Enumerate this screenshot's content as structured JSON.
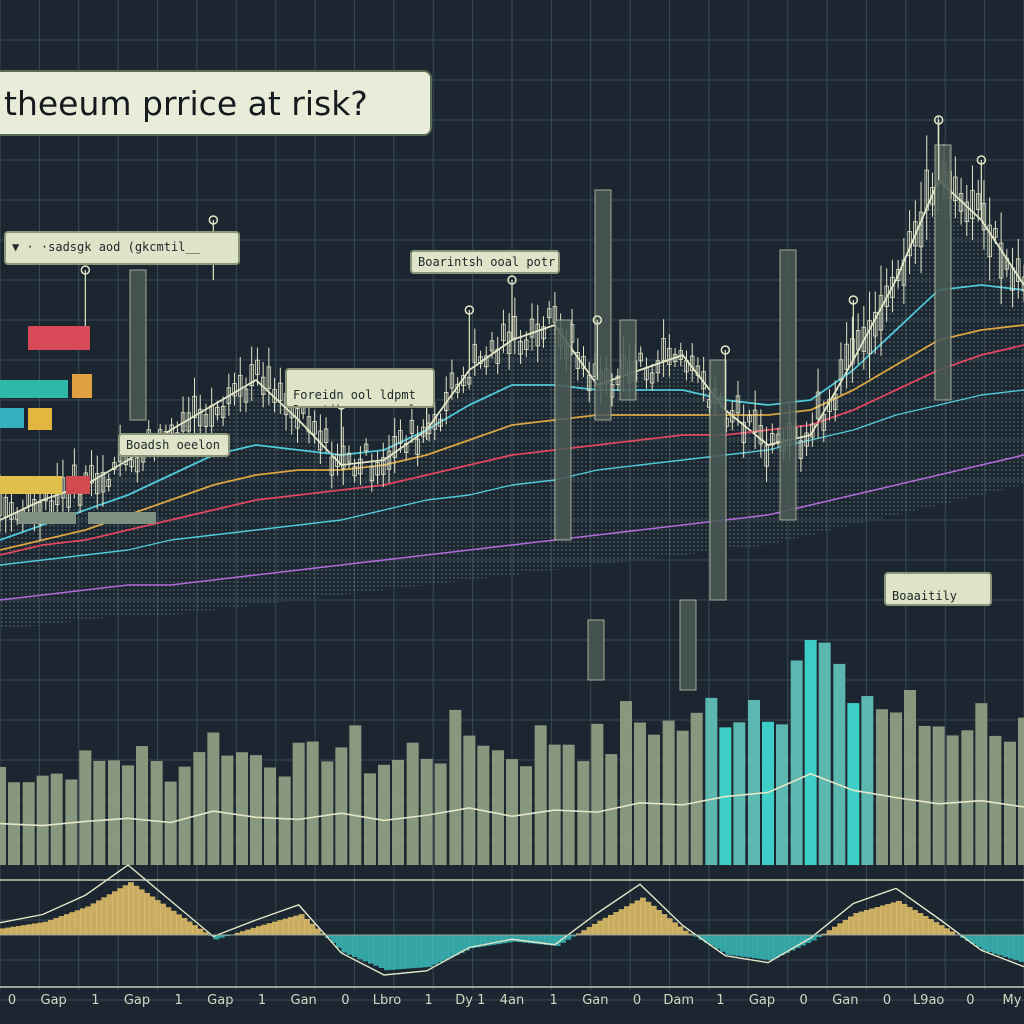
{
  "title": "theeum prrice at risk?",
  "annotations": [
    {
      "id": "legend-note",
      "text": "▼ · ·sadsgk aod (gkcmtil__"
    },
    {
      "id": "bearish-top",
      "text": "Boarintsh ooal potr"
    },
    {
      "id": "mid-note",
      "text": "Foreidn ool ldpmt\nDseotih cnnmanoal"
    },
    {
      "id": "bearish-left",
      "text": "Boadsh oeelon"
    },
    {
      "id": "bullish-right",
      "text": "Boaaitily toe\nUrroi puiseo"
    }
  ],
  "colors": {
    "background": "#1b2630",
    "grid": "#3a4a52",
    "price": "#e4e6c8",
    "cyan": "#4fc8d8",
    "gold": "#d9a441",
    "red": "#e0455f",
    "purple": "#b06ad8",
    "volume": "#8e9e83",
    "volume_highlight": "#3fd8d0",
    "oscillator_gold": "#e6c46a",
    "oscillator_cyan": "#3ab8b8"
  },
  "chart_data": {
    "type": "line",
    "x_tick_labels": [
      "0",
      "Gap",
      "1",
      "Gap",
      "1",
      "Gap",
      "1",
      "Gan",
      "0",
      "Lbro",
      "1",
      "Dy 1",
      "4an",
      "1",
      "Gan",
      "0",
      "Dam",
      "1",
      "Gap",
      "0",
      "Gan",
      "0",
      "L9ao",
      "0",
      "My"
    ],
    "series": [
      {
        "values": [
          40,
          44,
          47,
          52,
          58,
          63,
          68,
          60,
          51,
          52,
          58,
          70,
          76,
          79,
          67,
          70,
          73,
          62,
          55,
          57,
          72,
          88,
          108,
          100,
          87
        ]
      },
      {
        "values": [
          36,
          39,
          42,
          45,
          49,
          53,
          55,
          54,
          53,
          54,
          58,
          63,
          67,
          67,
          66,
          66,
          66,
          64,
          63,
          64,
          70,
          78,
          86,
          87,
          86
        ]
      },
      {
        "values": [
          34,
          36,
          38,
          41,
          44,
          47,
          49,
          50,
          50,
          51,
          53,
          56,
          59,
          60,
          61,
          61,
          61,
          61,
          61,
          62,
          66,
          71,
          76,
          78,
          79
        ]
      },
      {
        "values": [
          33,
          35,
          36,
          38,
          40,
          42,
          44,
          45,
          46,
          47,
          49,
          51,
          53,
          54,
          55,
          56,
          57,
          57,
          58,
          59,
          62,
          66,
          70,
          73,
          75
        ]
      },
      {
        "values": [
          31,
          32,
          33,
          34,
          36,
          37,
          38,
          39,
          40,
          42,
          44,
          45,
          47,
          48,
          50,
          51,
          52,
          53,
          54,
          56,
          58,
          61,
          63,
          65,
          66
        ]
      },
      {
        "values": [
          24,
          25,
          26,
          27,
          27,
          28,
          29,
          30,
          31,
          32,
          33,
          34,
          35,
          36,
          37,
          38,
          39,
          40,
          41,
          43,
          45,
          47,
          49,
          51,
          53
        ]
      }
    ],
    "volume": [
      40,
      38,
      42,
      45,
      41,
      52,
      46,
      44,
      50,
      43,
      48,
      55,
      47,
      53,
      51,
      60,
      58,
      66,
      70,
      88,
      72,
      65,
      59,
      62,
      56
    ],
    "oscillator": [
      0.6,
      1.2,
      2.6,
      4.8,
      2.2,
      -0.4,
      0.8,
      1.9,
      -1.6,
      -3.2,
      -2.9,
      -1.2,
      -0.6,
      -1.0,
      1.3,
      3.4,
      0.4,
      -1.8,
      -2.3,
      -0.5,
      2.0,
      3.1,
      0.9,
      -1.4,
      -2.6
    ],
    "y_range": [
      0,
      120
    ],
    "grid": true
  }
}
